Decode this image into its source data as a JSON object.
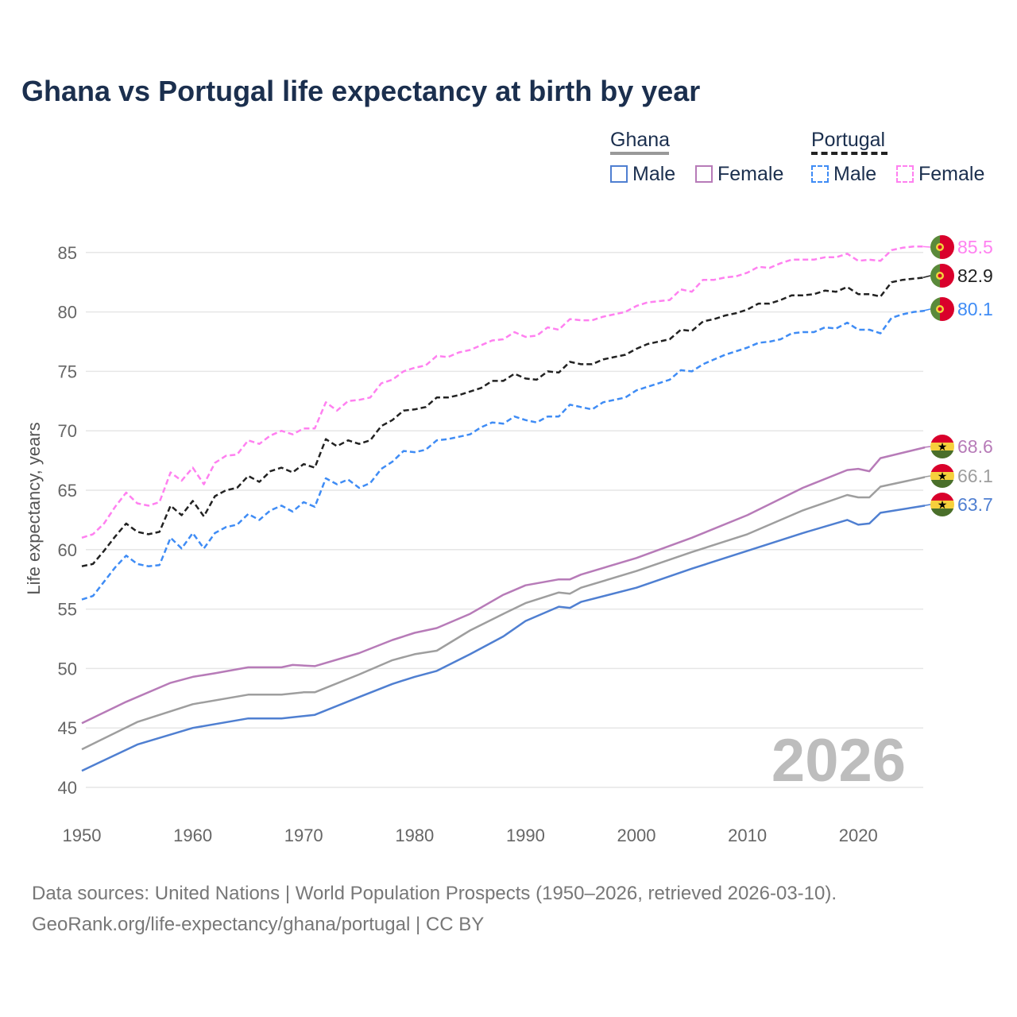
{
  "title": "Ghana vs Portugal life expectancy at birth by year",
  "legend": {
    "ghana": "Ghana",
    "portugal": "Portugal",
    "male": "Male",
    "female": "Female"
  },
  "footer": {
    "line1": "Data sources: United Nations | World Population Prospects (1950–2026, retrieved 2026-03-10).",
    "line2": "GeoRank.org/life-expectancy/ghana/portugal | CC BY"
  },
  "chart_data": {
    "type": "line",
    "title": "Ghana vs Portugal life expectancy at birth by year",
    "ylabel": "Life expectancy, years",
    "xlim": [
      1950,
      2026
    ],
    "ylim": [
      40,
      87
    ],
    "xticks": [
      "1950",
      "1960",
      "1970",
      "1980",
      "1990",
      "2000",
      "2010",
      "2020"
    ],
    "yticks": [
      "40",
      "45",
      "50",
      "55",
      "60",
      "65",
      "70",
      "75",
      "80",
      "85"
    ],
    "year_label": "2026",
    "series": [
      {
        "name": "Portugal Female",
        "country": "Portugal",
        "color": "#ff80f0",
        "dashed": true,
        "end_label": "85.5",
        "x_start": 1950,
        "values": [
          61.0,
          61.3,
          62.2,
          63.6,
          64.8,
          63.9,
          63.7,
          64.0,
          66.5,
          65.8,
          66.9,
          65.5,
          67.3,
          67.9,
          68.0,
          69.2,
          68.9,
          69.6,
          70.0,
          69.7,
          70.2,
          70.2,
          72.4,
          71.7,
          72.5,
          72.6,
          72.8,
          74.0,
          74.3,
          75.0,
          75.3,
          75.5,
          76.3,
          76.2,
          76.6,
          76.8,
          77.2,
          77.6,
          77.7,
          78.3,
          77.9,
          78.0,
          78.7,
          78.5,
          79.4,
          79.3,
          79.3,
          79.6,
          79.8,
          80.0,
          80.5,
          80.8,
          80.9,
          81.0,
          81.9,
          81.7,
          82.7,
          82.7,
          82.9,
          83.0,
          83.3,
          83.8,
          83.7,
          84.1,
          84.4,
          84.4,
          84.4,
          84.6,
          84.6,
          84.9,
          84.3,
          84.4,
          84.3,
          85.2,
          85.4,
          85.5,
          85.5
        ]
      },
      {
        "name": "Portugal Total",
        "country": "Portugal",
        "color": "#222222",
        "dashed": true,
        "end_label": "82.9",
        "x_start": 1950,
        "values": [
          58.6,
          58.8,
          59.9,
          61.1,
          62.2,
          61.5,
          61.3,
          61.5,
          63.7,
          62.9,
          64.1,
          62.8,
          64.5,
          65.0,
          65.2,
          66.2,
          65.7,
          66.6,
          66.9,
          66.5,
          67.2,
          66.9,
          69.3,
          68.7,
          69.2,
          68.9,
          69.2,
          70.4,
          70.9,
          71.7,
          71.8,
          72.0,
          72.8,
          72.8,
          73.0,
          73.3,
          73.6,
          74.2,
          74.2,
          74.8,
          74.4,
          74.3,
          75.0,
          74.9,
          75.8,
          75.6,
          75.6,
          76.0,
          76.2,
          76.4,
          76.9,
          77.3,
          77.5,
          77.7,
          78.5,
          78.4,
          79.2,
          79.4,
          79.7,
          79.9,
          80.2,
          80.7,
          80.7,
          81.0,
          81.4,
          81.4,
          81.5,
          81.8,
          81.7,
          82.1,
          81.5,
          81.5,
          81.3,
          82.5,
          82.7,
          82.8,
          82.9
        ]
      },
      {
        "name": "Portugal Male",
        "country": "Portugal",
        "color": "#3f8cf5",
        "dashed": true,
        "end_label": "80.1",
        "x_start": 1950,
        "values": [
          55.8,
          56.1,
          57.3,
          58.5,
          59.5,
          58.8,
          58.6,
          58.7,
          61.0,
          60.1,
          61.4,
          60.1,
          61.4,
          61.9,
          62.1,
          63.0,
          62.5,
          63.3,
          63.7,
          63.2,
          64.0,
          63.6,
          66.0,
          65.5,
          65.9,
          65.2,
          65.6,
          66.8,
          67.4,
          68.3,
          68.2,
          68.4,
          69.2,
          69.3,
          69.5,
          69.7,
          70.3,
          70.7,
          70.6,
          71.2,
          70.9,
          70.7,
          71.2,
          71.2,
          72.2,
          72.0,
          71.8,
          72.4,
          72.6,
          72.8,
          73.4,
          73.7,
          74.0,
          74.3,
          75.1,
          75.0,
          75.6,
          76.0,
          76.4,
          76.7,
          77.0,
          77.4,
          77.5,
          77.7,
          78.2,
          78.3,
          78.3,
          78.7,
          78.6,
          79.1,
          78.5,
          78.5,
          78.2,
          79.5,
          79.8,
          80.0,
          80.1
        ]
      },
      {
        "name": "Ghana Female",
        "country": "Ghana",
        "color": "#b77bb8",
        "dashed": false,
        "end_label": "68.6",
        "x": [
          1950,
          1954,
          1958,
          1960,
          1962,
          1965,
          1968,
          1969,
          1971,
          1975,
          1978,
          1980,
          1982,
          1985,
          1988,
          1990,
          1993,
          1994,
          1995,
          2000,
          2005,
          2010,
          2015,
          2019,
          2020,
          2021,
          2022,
          2026
        ],
        "values": [
          45.4,
          47.2,
          48.8,
          49.3,
          49.6,
          50.1,
          50.1,
          50.3,
          50.2,
          51.3,
          52.4,
          53.0,
          53.4,
          54.6,
          56.2,
          57.0,
          57.5,
          57.5,
          57.9,
          59.3,
          61.0,
          62.9,
          65.2,
          66.7,
          66.8,
          66.6,
          67.7,
          68.6
        ]
      },
      {
        "name": "Ghana Total",
        "country": "Ghana",
        "color": "#9e9e9e",
        "dashed": false,
        "end_label": "66.1",
        "x": [
          1950,
          1955,
          1960,
          1965,
          1968,
          1970,
          1971,
          1975,
          1978,
          1980,
          1982,
          1985,
          1988,
          1990,
          1993,
          1994,
          1995,
          2000,
          2005,
          2010,
          2015,
          2019,
          2020,
          2021,
          2022,
          2026
        ],
        "values": [
          43.2,
          45.5,
          47.0,
          47.8,
          47.8,
          48.0,
          48.0,
          49.5,
          50.7,
          51.2,
          51.5,
          53.2,
          54.6,
          55.5,
          56.4,
          56.3,
          56.8,
          58.2,
          59.8,
          61.3,
          63.3,
          64.6,
          64.4,
          64.4,
          65.3,
          66.1
        ]
      },
      {
        "name": "Ghana Male",
        "country": "Ghana",
        "color": "#4f7fd1",
        "dashed": false,
        "end_label": "63.7",
        "x": [
          1950,
          1955,
          1960,
          1965,
          1968,
          1970,
          1971,
          1975,
          1978,
          1980,
          1982,
          1985,
          1988,
          1990,
          1993,
          1994,
          1995,
          2000,
          2005,
          2010,
          2015,
          2019,
          2020,
          2021,
          2022,
          2026
        ],
        "values": [
          41.4,
          43.6,
          45.0,
          45.8,
          45.8,
          46.0,
          46.1,
          47.6,
          48.7,
          49.3,
          49.8,
          51.2,
          52.7,
          54.0,
          55.2,
          55.1,
          55.6,
          56.8,
          58.4,
          59.9,
          61.4,
          62.5,
          62.1,
          62.2,
          63.1,
          63.7
        ]
      }
    ]
  }
}
